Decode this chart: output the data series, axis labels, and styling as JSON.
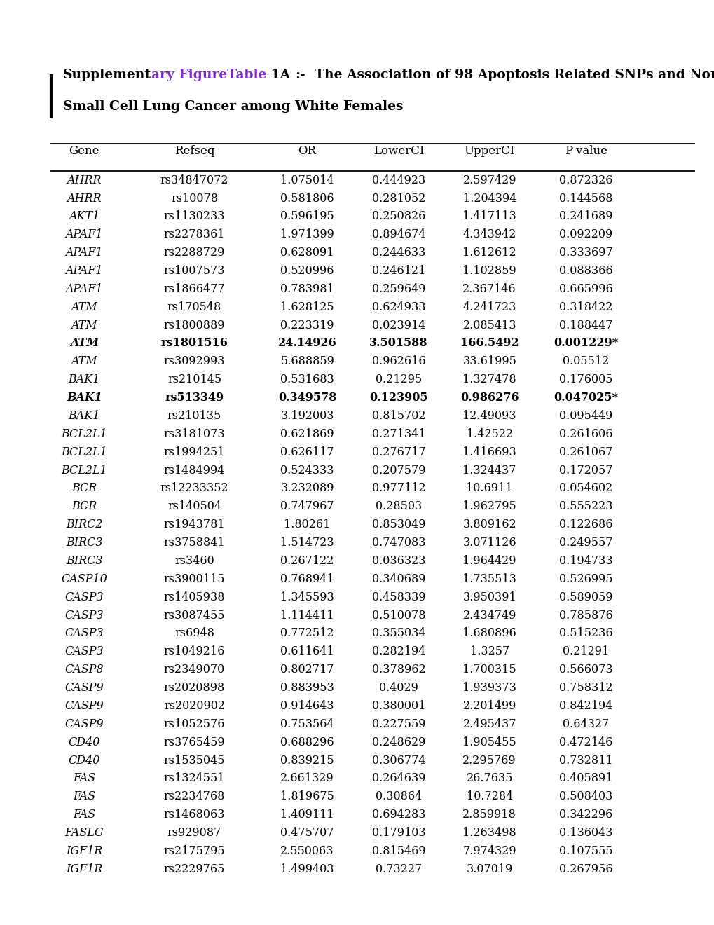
{
  "background_color": "#ffffff",
  "text_color": "#000000",
  "purple_color": "#7b2fbe",
  "columns": [
    "Gene",
    "Refseq",
    "OR",
    "LowerCI",
    "UpperCI",
    "P-value"
  ],
  "rows": [
    [
      "AHRR",
      "rs34847072",
      "1.075014",
      "0.444923",
      "2.597429",
      "0.872326",
      false
    ],
    [
      "AHRR",
      "rs10078",
      "0.581806",
      "0.281052",
      "1.204394",
      "0.144568",
      false
    ],
    [
      "AKT1",
      "rs1130233",
      "0.596195",
      "0.250826",
      "1.417113",
      "0.241689",
      false
    ],
    [
      "APAF1",
      "rs2278361",
      "1.971399",
      "0.894674",
      "4.343942",
      "0.092209",
      false
    ],
    [
      "APAF1",
      "rs2288729",
      "0.628091",
      "0.244633",
      "1.612612",
      "0.333697",
      false
    ],
    [
      "APAF1",
      "rs1007573",
      "0.520996",
      "0.246121",
      "1.102859",
      "0.088366",
      false
    ],
    [
      "APAF1",
      "rs1866477",
      "0.783981",
      "0.259649",
      "2.367146",
      "0.665996",
      false
    ],
    [
      "ATM",
      "rs170548",
      "1.628125",
      "0.624933",
      "4.241723",
      "0.318422",
      false
    ],
    [
      "ATM",
      "rs1800889",
      "0.223319",
      "0.023914",
      "2.085413",
      "0.188447",
      false
    ],
    [
      "ATM",
      "rs1801516",
      "24.14926",
      "3.501588",
      "166.5492",
      "0.001229*",
      true
    ],
    [
      "ATM",
      "rs3092993",
      "5.688859",
      "0.962616",
      "33.61995",
      "0.05512",
      false
    ],
    [
      "BAK1",
      "rs210145",
      "0.531683",
      "0.21295",
      "1.327478",
      "0.176005",
      false
    ],
    [
      "BAK1",
      "rs513349",
      "0.349578",
      "0.123905",
      "0.986276",
      "0.047025*",
      true
    ],
    [
      "BAK1",
      "rs210135",
      "3.192003",
      "0.815702",
      "12.49093",
      "0.095449",
      false
    ],
    [
      "BCL2L1",
      "rs3181073",
      "0.621869",
      "0.271341",
      "1.42522",
      "0.261606",
      false
    ],
    [
      "BCL2L1",
      "rs1994251",
      "0.626117",
      "0.276717",
      "1.416693",
      "0.261067",
      false
    ],
    [
      "BCL2L1",
      "rs1484994",
      "0.524333",
      "0.207579",
      "1.324437",
      "0.172057",
      false
    ],
    [
      "BCR",
      "rs12233352",
      "3.232089",
      "0.977112",
      "10.6911",
      "0.054602",
      false
    ],
    [
      "BCR",
      "rs140504",
      "0.747967",
      "0.28503",
      "1.962795",
      "0.555223",
      false
    ],
    [
      "BIRC2",
      "rs1943781",
      "1.80261",
      "0.853049",
      "3.809162",
      "0.122686",
      false
    ],
    [
      "BIRC3",
      "rs3758841",
      "1.514723",
      "0.747083",
      "3.071126",
      "0.249557",
      false
    ],
    [
      "BIRC3",
      "rs3460",
      "0.267122",
      "0.036323",
      "1.964429",
      "0.194733",
      false
    ],
    [
      "CASP10",
      "rs3900115",
      "0.768941",
      "0.340689",
      "1.735513",
      "0.526995",
      false
    ],
    [
      "CASP3",
      "rs1405938",
      "1.345593",
      "0.458339",
      "3.950391",
      "0.589059",
      false
    ],
    [
      "CASP3",
      "rs3087455",
      "1.114411",
      "0.510078",
      "2.434749",
      "0.785876",
      false
    ],
    [
      "CASP3",
      "rs6948",
      "0.772512",
      "0.355034",
      "1.680896",
      "0.515236",
      false
    ],
    [
      "CASP3",
      "rs1049216",
      "0.611641",
      "0.282194",
      "1.3257",
      "0.21291",
      false
    ],
    [
      "CASP8",
      "rs2349070",
      "0.802717",
      "0.378962",
      "1.700315",
      "0.566073",
      false
    ],
    [
      "CASP9",
      "rs2020898",
      "0.883953",
      "0.4029",
      "1.939373",
      "0.758312",
      false
    ],
    [
      "CASP9",
      "rs2020902",
      "0.914643",
      "0.380001",
      "2.201499",
      "0.842194",
      false
    ],
    [
      "CASP9",
      "rs1052576",
      "0.753564",
      "0.227559",
      "2.495437",
      "0.64327",
      false
    ],
    [
      "CD40",
      "rs3765459",
      "0.688296",
      "0.248629",
      "1.905455",
      "0.472146",
      false
    ],
    [
      "CD40",
      "rs1535045",
      "0.839215",
      "0.306774",
      "2.295769",
      "0.732811",
      false
    ],
    [
      "FAS",
      "rs1324551",
      "2.661329",
      "0.264639",
      "26.7635",
      "0.405891",
      false
    ],
    [
      "FAS",
      "rs2234768",
      "1.819675",
      "0.30864",
      "10.7284",
      "0.508403",
      false
    ],
    [
      "FAS",
      "rs1468063",
      "1.409111",
      "0.694283",
      "2.859918",
      "0.342296",
      false
    ],
    [
      "FASLG",
      "rs929087",
      "0.475707",
      "0.179103",
      "1.263498",
      "0.136043",
      false
    ],
    [
      "IGF1R",
      "rs2175795",
      "2.550063",
      "0.815469",
      "7.974329",
      "0.107555",
      false
    ],
    [
      "IGF1R",
      "rs2229765",
      "1.499403",
      "0.73227",
      "3.07019",
      "0.267956",
      false
    ]
  ],
  "font_size": 11.5,
  "header_font_size": 12.0,
  "title_font_size": 13.5
}
